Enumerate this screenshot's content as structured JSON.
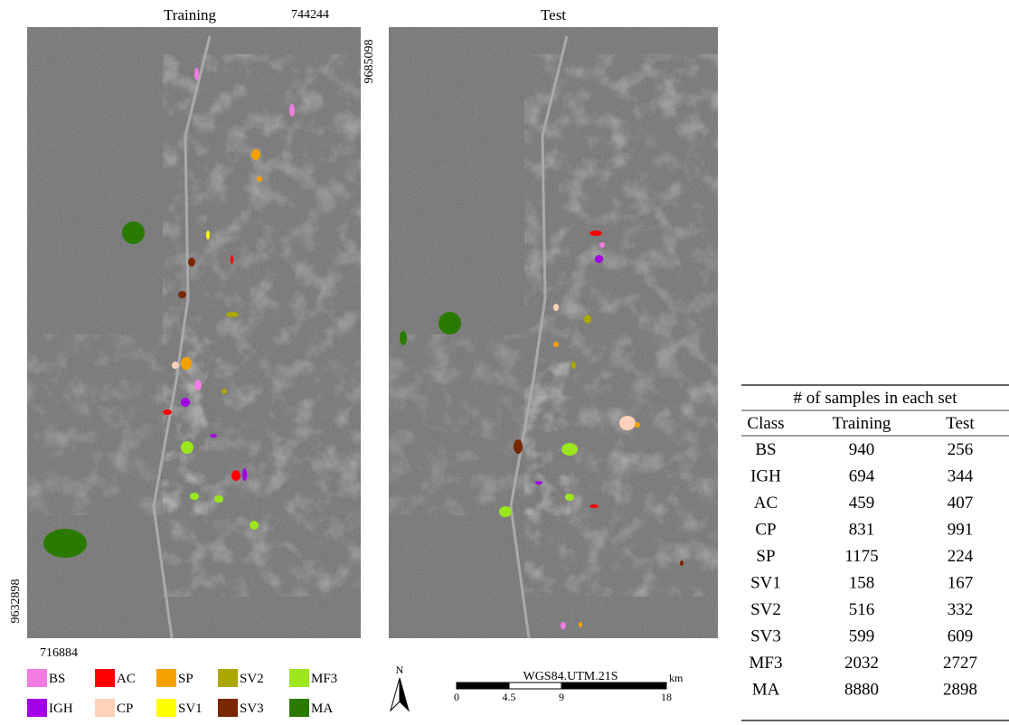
{
  "panels": [
    {
      "title": "Training"
    },
    {
      "title": "Test"
    }
  ],
  "coordinates": {
    "top_right_easting": "744244",
    "top_northing": "9685098",
    "bottom_northing": "9632898",
    "bottom_left_easting": "716884"
  },
  "legend": [
    {
      "label": "BS",
      "color": "#f27ce2"
    },
    {
      "label": "AC",
      "color": "#ff0000"
    },
    {
      "label": "SP",
      "color": "#f5a200"
    },
    {
      "label": "SV2",
      "color": "#a9a700"
    },
    {
      "label": "MF3",
      "color": "#9be61c"
    },
    {
      "label": "IGH",
      "color": "#a300e6"
    },
    {
      "label": "CP",
      "color": "#ffd1bb"
    },
    {
      "label": "SV1",
      "color": "#ffff00"
    },
    {
      "label": "SV3",
      "color": "#7a2600"
    },
    {
      "label": "MA",
      "color": "#2b7a00"
    }
  ],
  "north_arrow": "N",
  "scale_bar": {
    "title": "WGS84.UTM.21S",
    "unit": "km",
    "ticks": [
      0,
      4.5,
      9,
      18
    ]
  },
  "table": {
    "title": "# of samples in each set",
    "header": [
      "Class",
      "Training",
      "Test"
    ],
    "rows": [
      [
        "BS",
        940,
        256
      ],
      [
        "IGH",
        694,
        344
      ],
      [
        "AC",
        459,
        407
      ],
      [
        "CP",
        831,
        991
      ],
      [
        "SP",
        1175,
        224
      ],
      [
        "SV1",
        158,
        167
      ],
      [
        "SV2",
        516,
        332
      ],
      [
        "SV3",
        599,
        609
      ],
      [
        "MF3",
        2032,
        2727
      ],
      [
        "MA",
        8880,
        2898
      ]
    ]
  }
}
